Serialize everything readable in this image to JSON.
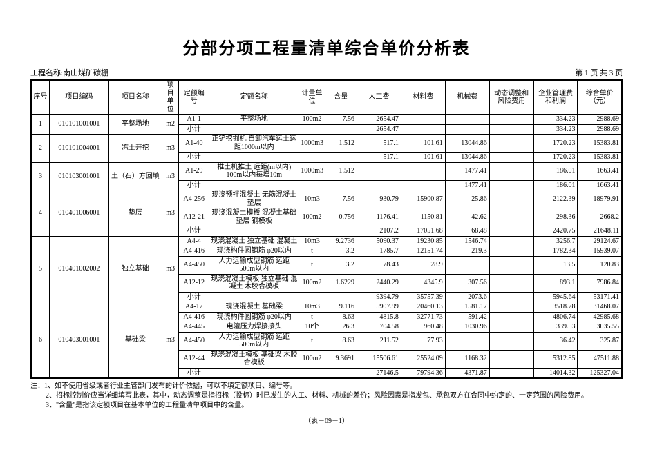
{
  "title": "分部分项工程量清单综合单价分析表",
  "meta": {
    "project_label": "工程名称:",
    "project_name": "南山煤矿碳棚",
    "page_info": "第  1 页 共 3 页"
  },
  "headers": {
    "seq": "序号",
    "item_code": "项目编码",
    "item_name": "项目名称",
    "item_unit": "项目单位",
    "quota_code": "定额编号",
    "quota_name": "定额名称",
    "meas_unit": "计量单位",
    "qty": "含量",
    "labor": "人工费",
    "material": "材料费",
    "machine": "机械费",
    "risk": "动态调整和风险费用",
    "mgmt": "企业管理费和利润",
    "unit_price": "综合单价（元）"
  },
  "subtotal_label": "小计",
  "rows": [
    {
      "seq": "1",
      "item_code": "010101001001",
      "item_name": "平整场地",
      "item_unit": "m2",
      "lines": [
        {
          "quota_code": "A1-1",
          "quota_name": "平整场地",
          "meas_unit": "100m2",
          "qty": "7.56",
          "labor": "2654.47",
          "material": "",
          "machine": "",
          "risk": "",
          "mgmt": "334.23",
          "unit_price": "2988.69"
        }
      ],
      "subtotal": {
        "labor": "2654.47",
        "material": "",
        "machine": "",
        "risk": "",
        "mgmt": "334.23",
        "unit_price": "2988.69"
      }
    },
    {
      "seq": "2",
      "item_code": "010101004001",
      "item_name": "冻土开挖",
      "item_unit": "m3",
      "lines": [
        {
          "quota_code": "A1-40",
          "quota_name": "正铲挖掘机 自卸汽车运土运距1000m以内",
          "meas_unit": "1000m3",
          "qty": "1.512",
          "labor": "517.1",
          "material": "101.61",
          "machine": "13044.86",
          "risk": "",
          "mgmt": "1720.23",
          "unit_price": "15383.81"
        }
      ],
      "subtotal": {
        "labor": "517.1",
        "material": "101.61",
        "machine": "13044.86",
        "risk": "",
        "mgmt": "1720.23",
        "unit_price": "15383.81"
      }
    },
    {
      "seq": "3",
      "item_code": "010103001001",
      "item_name": "土（石）方回填",
      "item_unit": "m3",
      "lines": [
        {
          "quota_code": "A1-29",
          "quota_name": "推土机推土 运距(m以内) 100m以内每增10m",
          "meas_unit": "1000m3",
          "qty": "1.512",
          "labor": "",
          "material": "",
          "machine": "1477.41",
          "risk": "",
          "mgmt": "186.01",
          "unit_price": "1663.41"
        }
      ],
      "subtotal": {
        "labor": "",
        "material": "",
        "machine": "1477.41",
        "risk": "",
        "mgmt": "186.01",
        "unit_price": "1663.41"
      }
    },
    {
      "seq": "4",
      "item_code": "010401006001",
      "item_name": "垫层",
      "item_unit": "m3",
      "lines": [
        {
          "quota_code": "A4-256",
          "quota_name": "现浇预拌混凝土 无筋混凝土垫层",
          "meas_unit": "10m3",
          "qty": "7.56",
          "labor": "930.79",
          "material": "15900.87",
          "machine": "25.86",
          "risk": "",
          "mgmt": "2122.39",
          "unit_price": "18979.91"
        },
        {
          "quota_code": "A12-21",
          "quota_name": "现浇混凝土模板 混凝土基础垫层 钢模板",
          "meas_unit": "100m2",
          "qty": "0.756",
          "labor": "1176.41",
          "material": "1150.81",
          "machine": "42.62",
          "risk": "",
          "mgmt": "298.36",
          "unit_price": "2668.2"
        }
      ],
      "subtotal": {
        "labor": "2107.2",
        "material": "17051.68",
        "machine": "68.48",
        "risk": "",
        "mgmt": "2420.75",
        "unit_price": "21648.11"
      }
    },
    {
      "seq": "5",
      "item_code": "010401002002",
      "item_name": "独立基础",
      "item_unit": "m3",
      "lines": [
        {
          "quota_code": "A4-4",
          "quota_name": "现浇混凝土 独立基础 混凝土",
          "meas_unit": "10m3",
          "qty": "9.2736",
          "labor": "5090.37",
          "material": "19230.85",
          "machine": "1546.74",
          "risk": "",
          "mgmt": "3256.7",
          "unit_price": "29124.67"
        },
        {
          "quota_code": "A4-416",
          "quota_name": "现浇构件圆钢筋 φ20以内",
          "meas_unit": "t",
          "qty": "3.2",
          "labor": "1785.7",
          "material": "12151.74",
          "machine": "219.3",
          "risk": "",
          "mgmt": "1782.34",
          "unit_price": "15939.07"
        },
        {
          "quota_code": "A4-450",
          "quota_name": "人力运输成型钢筋 运距500m以内",
          "meas_unit": "t",
          "qty": "3.2",
          "labor": "78.43",
          "material": "28.9",
          "machine": "",
          "risk": "",
          "mgmt": "13.5",
          "unit_price": "120.83"
        },
        {
          "quota_code": "A12-12",
          "quota_name": "现浇混凝土模板 独立基础 混凝土 木胶合模板",
          "meas_unit": "100m2",
          "qty": "1.6229",
          "labor": "2440.29",
          "material": "4345.9",
          "machine": "307.56",
          "risk": "",
          "mgmt": "893.1",
          "unit_price": "7986.84"
        }
      ],
      "subtotal": {
        "labor": "9394.79",
        "material": "35757.39",
        "machine": "2073.6",
        "risk": "",
        "mgmt": "5945.64",
        "unit_price": "53171.41"
      }
    },
    {
      "seq": "6",
      "item_code": "010403001001",
      "item_name": "基础梁",
      "item_unit": "m3",
      "lines": [
        {
          "quota_code": "A4-17",
          "quota_name": "现浇混凝土 基础梁",
          "meas_unit": "10m3",
          "qty": "9.116",
          "labor": "5907.99",
          "material": "20460.13",
          "machine": "1581.17",
          "risk": "",
          "mgmt": "3518.78",
          "unit_price": "31468.07"
        },
        {
          "quota_code": "A4-416",
          "quota_name": "现浇构件圆钢筋 φ20以内",
          "meas_unit": "t",
          "qty": "8.63",
          "labor": "4815.8",
          "material": "32771.73",
          "machine": "591.42",
          "risk": "",
          "mgmt": "4806.74",
          "unit_price": "42985.68"
        },
        {
          "quota_code": "A4-445",
          "quota_name": "电渣压力焊接接头",
          "meas_unit": "10个",
          "qty": "26.3",
          "labor": "704.58",
          "material": "960.48",
          "machine": "1030.96",
          "risk": "",
          "mgmt": "339.53",
          "unit_price": "3035.55"
        },
        {
          "quota_code": "A4-450",
          "quota_name": "人力运输成型钢筋 运距500m以内",
          "meas_unit": "t",
          "qty": "8.63",
          "labor": "211.52",
          "material": "77.93",
          "machine": "",
          "risk": "",
          "mgmt": "36.42",
          "unit_price": "325.87"
        },
        {
          "quota_code": "A12-44",
          "quota_name": "现浇混凝土模板 基础梁 木胶合模板",
          "meas_unit": "100m2",
          "qty": "9.3691",
          "labor": "15506.61",
          "material": "25524.09",
          "machine": "1168.32",
          "risk": "",
          "mgmt": "5312.85",
          "unit_price": "47511.88"
        }
      ],
      "subtotal": {
        "labor": "27146.5",
        "material": "79794.36",
        "machine": "4371.87",
        "risk": "",
        "mgmt": "14014.32",
        "unit_price": "125327.04"
      }
    }
  ],
  "notes": {
    "prefix": "注：",
    "lines": [
      "1、如不使用省级或者行业主管部门发布的计价依据，可以不填定额项目、编号等。",
      "2、招标控制价应当详细填写此表，其中，动态调整是指招标（投标）时已发生的人工、材料、机械的差价；风险因素是指发包、承包双方在合同中约定的、一定范围的风险费用。",
      "3、\"含量\"是指该定额项目在基本单位的工程量清单项目中的含量。"
    ]
  },
  "table_code": "（表－09－1）"
}
